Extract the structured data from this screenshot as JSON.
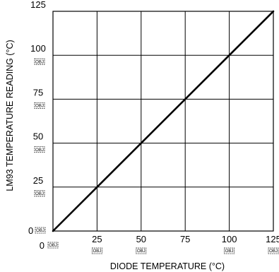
{
  "chart_data": {
    "type": "line",
    "title": "",
    "xlabel": "DIODE TEMPERATURE (°C)",
    "ylabel": "LM93 TEMPERATURE READING (°C)",
    "xlim": [
      0,
      125
    ],
    "ylim": [
      0,
      125
    ],
    "grid": true,
    "x_ticks": [
      {
        "value": 0,
        "label": "0",
        "placeholder": "OBJ"
      },
      {
        "value": 25,
        "label": "25",
        "placeholder": "OBJ"
      },
      {
        "value": 50,
        "label": "50",
        "placeholder": "OBJ"
      },
      {
        "value": 75,
        "label": "75",
        "placeholder": ""
      },
      {
        "value": 100,
        "label": "100",
        "placeholder": "OBJ"
      },
      {
        "value": 125,
        "label": "125",
        "placeholder": "OBJ"
      }
    ],
    "y_ticks": [
      {
        "value": 0,
        "label": "0",
        "placeholder": "OBJ"
      },
      {
        "value": 25,
        "label": "25",
        "placeholder": "OBJ"
      },
      {
        "value": 50,
        "label": "50",
        "placeholder": "OBJ"
      },
      {
        "value": 75,
        "label": "75",
        "placeholder": "OBJ"
      },
      {
        "value": 100,
        "label": "100",
        "placeholder": "OBJ"
      },
      {
        "value": 125,
        "label": "125",
        "placeholder": ""
      }
    ],
    "series": [
      {
        "x": [
          0,
          125
        ],
        "y": [
          0,
          125
        ],
        "color": "#000000"
      }
    ]
  }
}
